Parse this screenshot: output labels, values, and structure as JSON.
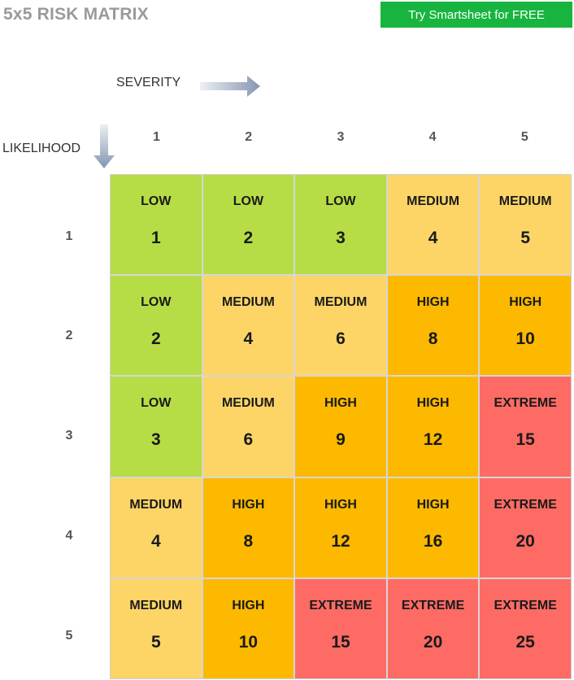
{
  "title": "5x5 RISK MATRIX",
  "cta_label": "Try Smartsheet for FREE",
  "severity_label": "SEVERITY",
  "likelihood_label": "LIKELIHOOD",
  "severity_values": [
    "1",
    "2",
    "3",
    "4",
    "5"
  ],
  "likelihood_values": [
    "1",
    "2",
    "3",
    "4",
    "5"
  ],
  "colors": {
    "LOW": "#b6dd46",
    "MEDIUM": "#fdd567",
    "HIGH": "#fcb900",
    "EXTREME": "#fe6b65",
    "cta": "#17b53f",
    "arrow": "#8496b0"
  },
  "icons": {
    "severity_arrow": "arrow-right-icon",
    "likelihood_arrow": "arrow-down-icon"
  },
  "matrix": [
    [
      {
        "level": "LOW",
        "score": "1"
      },
      {
        "level": "LOW",
        "score": "2"
      },
      {
        "level": "LOW",
        "score": "3"
      },
      {
        "level": "MEDIUM",
        "score": "4"
      },
      {
        "level": "MEDIUM",
        "score": "5"
      }
    ],
    [
      {
        "level": "LOW",
        "score": "2"
      },
      {
        "level": "MEDIUM",
        "score": "4"
      },
      {
        "level": "MEDIUM",
        "score": "6"
      },
      {
        "level": "HIGH",
        "score": "8"
      },
      {
        "level": "HIGH",
        "score": "10"
      }
    ],
    [
      {
        "level": "LOW",
        "score": "3"
      },
      {
        "level": "MEDIUM",
        "score": "6"
      },
      {
        "level": "HIGH",
        "score": "9"
      },
      {
        "level": "HIGH",
        "score": "12"
      },
      {
        "level": "EXTREME",
        "score": "15"
      }
    ],
    [
      {
        "level": "MEDIUM",
        "score": "4"
      },
      {
        "level": "HIGH",
        "score": "8"
      },
      {
        "level": "HIGH",
        "score": "12"
      },
      {
        "level": "HIGH",
        "score": "16"
      },
      {
        "level": "EXTREME",
        "score": "20"
      }
    ],
    [
      {
        "level": "MEDIUM",
        "score": "5"
      },
      {
        "level": "HIGH",
        "score": "10"
      },
      {
        "level": "EXTREME",
        "score": "15"
      },
      {
        "level": "EXTREME",
        "score": "20"
      },
      {
        "level": "EXTREME",
        "score": "25"
      }
    ]
  ]
}
